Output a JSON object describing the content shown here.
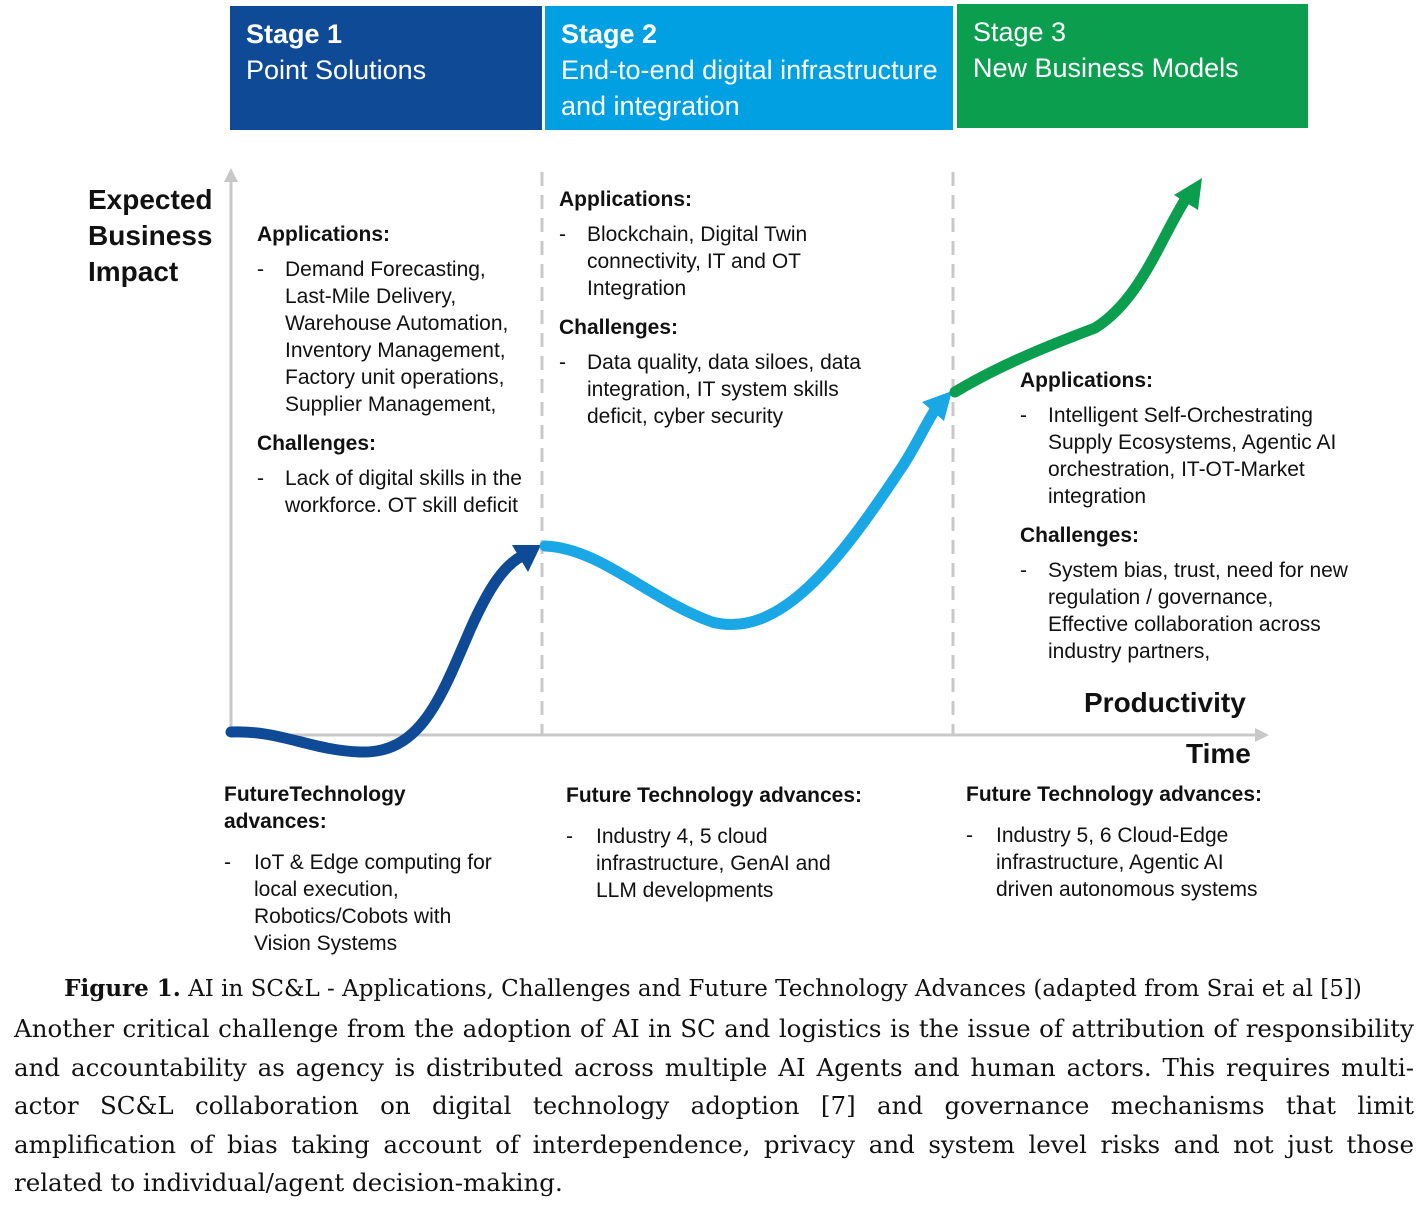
{
  "stages": [
    {
      "number": "Stage 1",
      "name": "Point Solutions",
      "color": "#0e4a96"
    },
    {
      "number": "Stage 2",
      "name": "End-to-end digital infrastructure and integration",
      "color": "#00a0e3"
    },
    {
      "number": "Stage 3",
      "name": "New Business Models",
      "color": "#0b9e4e"
    }
  ],
  "y_axis_label": "Expected Business Impact",
  "productivity_label": "Productivity",
  "x_axis_label": "Time",
  "stage1": {
    "applications_header": "Applications:",
    "applications": [
      "Demand Forecasting, Last-Mile Delivery, Warehouse Automation, Inventory Management, Factory unit operations, Supplier Management,"
    ],
    "challenges_header": "Challenges:",
    "challenges": [
      "Lack of digital skills in the workforce. OT skill deficit"
    ]
  },
  "stage2": {
    "applications_header": "Applications:",
    "applications": [
      "Blockchain, Digital Twin connectivity, IT and OT Integration"
    ],
    "challenges_header": "Challenges:",
    "challenges": [
      "Data quality, data siloes, data integration, IT system skills deficit, cyber security"
    ]
  },
  "stage3": {
    "applications_header": "Applications:",
    "applications": [
      "Intelligent Self-Orchestrating Supply Ecosystems, Agentic AI orchestration, IT-OT-Market integration"
    ],
    "challenges_header": "Challenges:",
    "challenges": [
      "System bias, trust, need for new regulation / governance, Effective collaboration across industry partners,"
    ]
  },
  "advances": [
    {
      "header": "FutureTechnology advances:",
      "item": "IoT & Edge computing for local execution, Robotics/Cobots with Vision Systems"
    },
    {
      "header": "Future Technology advances:",
      "item": "Industry 4, 5 cloud infrastructure, GenAI and LLM developments"
    },
    {
      "header": "Future Technology advances:",
      "item": "Industry 5, 6 Cloud-Edge infrastructure, Agentic AI driven autonomous systems"
    }
  ],
  "caption": {
    "label": "Figure 1.",
    "text": "AI in SC&L - Applications, Challenges and Future Technology Advances (adapted from Srai et al [5])"
  },
  "body_text": "Another critical challenge from the adoption of AI in SC and logistics is the issue of attribution of responsibility and accountability as agency is distributed across multiple AI Agents and human actors. This requires multi-actor SC&L collaboration on digital technology adoption [7] and governance mechanisms that limit amplification of bias taking account of interdependence, privacy and system level risks and not just those related to individual/agent decision-making.",
  "colors": {
    "stage1_curve": "#0e4a96",
    "stage2_curve": "#1aa7e6",
    "stage3_curve": "#0b9e4e",
    "axis": "#c8c8c8"
  }
}
